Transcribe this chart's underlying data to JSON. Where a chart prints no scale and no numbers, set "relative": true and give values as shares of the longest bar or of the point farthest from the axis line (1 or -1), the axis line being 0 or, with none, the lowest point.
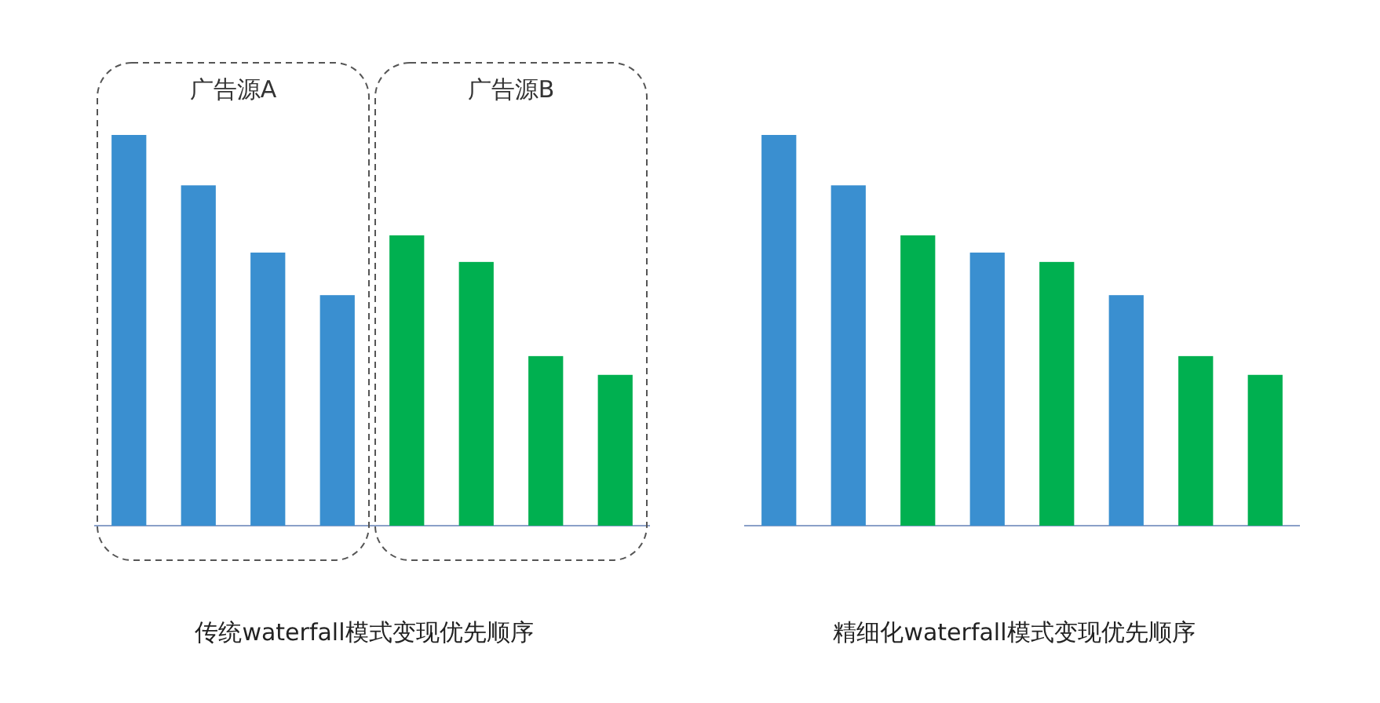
{
  "chart_data": [
    {
      "type": "bar",
      "title": "传统waterfall模式变现优先顺序",
      "relative": true,
      "categories": [
        null,
        null,
        null,
        null,
        null,
        null,
        null,
        null
      ],
      "values": [
        1,
        0.871,
        0.699,
        0.59,
        0.743,
        0.675,
        0.434,
        0.386
      ],
      "colors": [
        "#3a8fd0",
        "#3a8fd0",
        "#3a8fd0",
        "#3a8fd0",
        "#00b050",
        "#00b050",
        "#00b050",
        "#00b050"
      ],
      "annotations": [
        "广告源A",
        "广告源B"
      ]
    },
    {
      "type": "bar",
      "title": "精细化waterfall模式变现优先顺序",
      "relative": true,
      "categories": [
        null,
        null,
        null,
        null,
        null,
        null,
        null,
        null
      ],
      "values": [
        1,
        0.871,
        0.743,
        0.699,
        0.675,
        0.59,
        0.434,
        0.386
      ],
      "colors": [
        "#3a8fd0",
        "#3a8fd0",
        "#00b050",
        "#3a8fd0",
        "#00b050",
        "#3a8fd0",
        "#00b050",
        "#00b050"
      ]
    }
  ]
}
